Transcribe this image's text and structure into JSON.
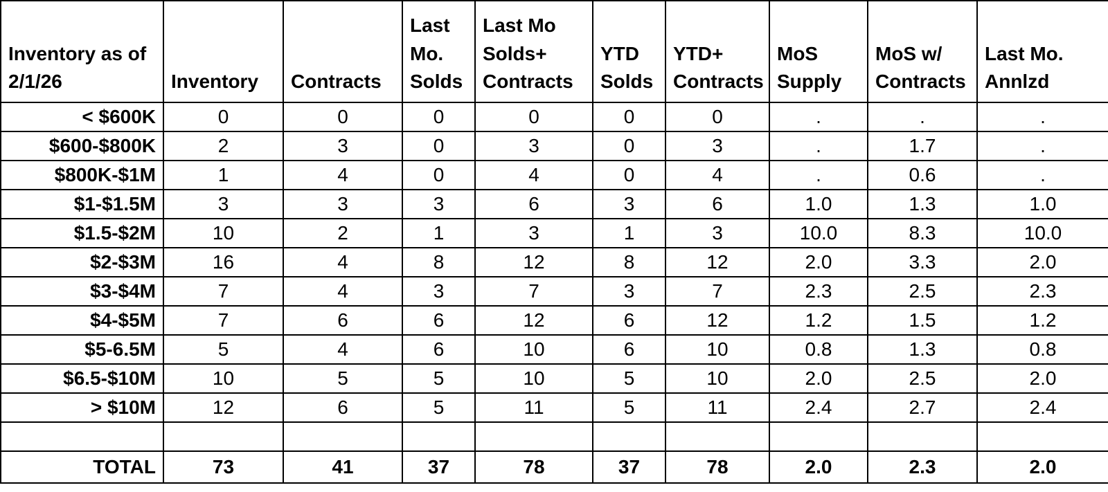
{
  "page_title": "Inventory as of 2/1/26",
  "colors": {
    "background": "#ffffff",
    "grid": "#000000",
    "text": "#000000"
  },
  "chart_data": {
    "type": "table",
    "title": "Inventory as of 2/1/26",
    "corner_header": "Inventory as of\n2/1/26",
    "columns": [
      "Inventory",
      "Contracts",
      "Last\nMo.\nSolds",
      "Last Mo\nSolds+\nContracts",
      "YTD\nSolds",
      "YTD+\nContracts",
      "MoS\nSupply",
      "MoS w/\nContracts",
      "Last Mo.\nAnnlzd"
    ],
    "rows": [
      {
        "label": "< $600K",
        "values": [
          "0",
          "0",
          "0",
          "0",
          "0",
          "0",
          ".",
          ".",
          "."
        ]
      },
      {
        "label": "$600-$800K",
        "values": [
          "2",
          "3",
          "0",
          "3",
          "0",
          "3",
          ".",
          "1.7",
          "."
        ]
      },
      {
        "label": "$800K-$1M",
        "values": [
          "1",
          "4",
          "0",
          "4",
          "0",
          "4",
          ".",
          "0.6",
          "."
        ]
      },
      {
        "label": "$1-$1.5M",
        "values": [
          "3",
          "3",
          "3",
          "6",
          "3",
          "6",
          "1.0",
          "1.3",
          "1.0"
        ]
      },
      {
        "label": "$1.5-$2M",
        "values": [
          "10",
          "2",
          "1",
          "3",
          "1",
          "3",
          "10.0",
          "8.3",
          "10.0"
        ]
      },
      {
        "label": "$2-$3M",
        "values": [
          "16",
          "4",
          "8",
          "12",
          "8",
          "12",
          "2.0",
          "3.3",
          "2.0"
        ]
      },
      {
        "label": "$3-$4M",
        "values": [
          "7",
          "4",
          "3",
          "7",
          "3",
          "7",
          "2.3",
          "2.5",
          "2.3"
        ]
      },
      {
        "label": "$4-$5M",
        "values": [
          "7",
          "6",
          "6",
          "12",
          "6",
          "12",
          "1.2",
          "1.5",
          "1.2"
        ]
      },
      {
        "label": "$5-6.5M",
        "values": [
          "5",
          "4",
          "6",
          "10",
          "6",
          "10",
          "0.8",
          "1.3",
          "0.8"
        ]
      },
      {
        "label": "$6.5-$10M",
        "values": [
          "10",
          "5",
          "5",
          "10",
          "5",
          "10",
          "2.0",
          "2.5",
          "2.0"
        ]
      },
      {
        "label": "> $10M",
        "values": [
          "12",
          "6",
          "5",
          "11",
          "5",
          "11",
          "2.4",
          "2.7",
          "2.4"
        ]
      }
    ],
    "spacer_row": {
      "label": "",
      "values": [
        "",
        "",
        "",
        "",
        "",
        "",
        "",
        "",
        ""
      ]
    },
    "total_row": {
      "label": "TOTAL",
      "values": [
        "73",
        "41",
        "37",
        "78",
        "37",
        "78",
        "2.0",
        "2.3",
        "2.0"
      ]
    }
  }
}
